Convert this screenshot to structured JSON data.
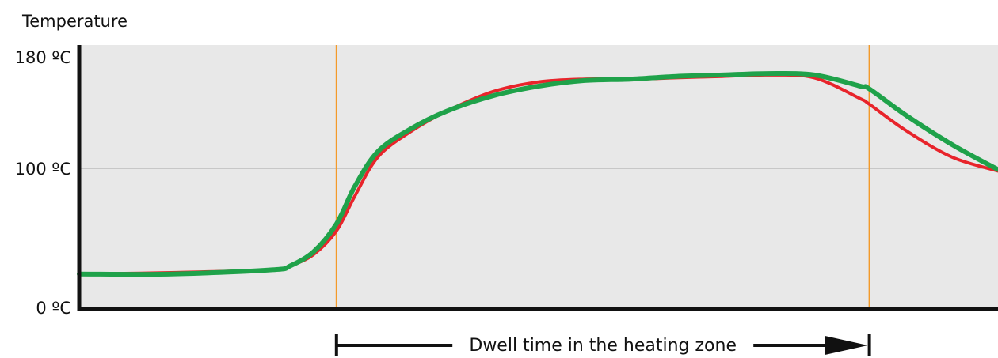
{
  "chart_data": {
    "type": "line",
    "title": "",
    "ylabel": "Temperature",
    "xlabel": "",
    "ylim": [
      0,
      180
    ],
    "xlim": [
      0,
      100
    ],
    "yticks": [
      {
        "value": 180,
        "label": "180 ºC"
      },
      {
        "value": 100,
        "label": "100 ºC"
      },
      {
        "value": 0,
        "label": "0 ºC"
      }
    ],
    "grid": {
      "horizontal_at": [
        100
      ]
    },
    "zone_markers": [
      28,
      86
    ],
    "annotation": {
      "text": "Dwell time in the heating zone",
      "from": 28,
      "to": 86
    },
    "series": [
      {
        "color": "#e8242b",
        "x": [
          0,
          10,
          21,
          23,
          25.5,
          28,
          30,
          32.5,
          36,
          40,
          45,
          50,
          55,
          60,
          65,
          70,
          75,
          80,
          85,
          86,
          90,
          95,
          100
        ],
        "values": [
          24,
          25,
          27,
          30,
          38,
          55,
          80,
          108,
          126,
          141,
          155,
          162,
          164,
          164,
          165,
          166,
          167,
          165,
          150,
          146,
          127,
          108,
          98
        ]
      },
      {
        "color": "#1fa24a",
        "x": [
          0,
          10,
          21,
          23,
          25.5,
          28,
          30,
          32.5,
          36,
          40,
          45,
          50,
          55,
          60,
          65,
          70,
          75,
          80,
          85,
          86,
          90,
          95,
          100
        ],
        "values": [
          24,
          24,
          27,
          30,
          40,
          60,
          87,
          112,
          128,
          141,
          152,
          159,
          163,
          164,
          166,
          167,
          168,
          167,
          159,
          157,
          138,
          117,
          99
        ]
      }
    ],
    "colors": {
      "background": "#e8e8e8",
      "axis": "#111111",
      "gridline": "#b3b3b3",
      "zone_marker": "#f39a2a",
      "arrow": "#111111"
    }
  }
}
